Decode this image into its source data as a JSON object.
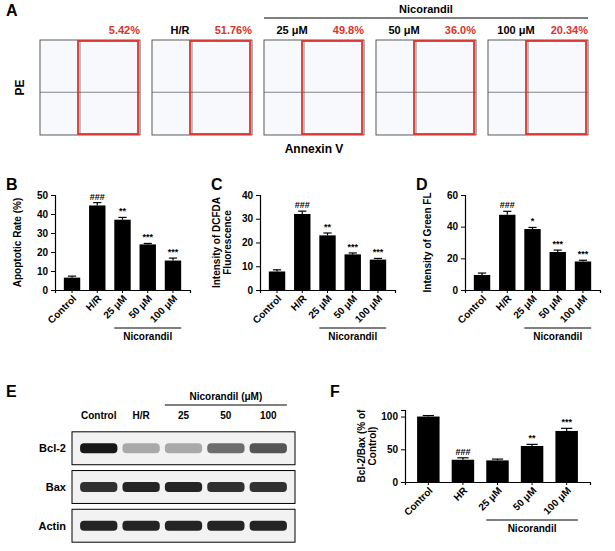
{
  "chart_data": [
    {
      "type": "flow_cytometry",
      "label": "A",
      "x_label": "Annexin V",
      "y_label": "PE",
      "group_label": "Nicorandil",
      "titles": [
        null,
        "H/R",
        "25 μM",
        "50 μM",
        "100 μM"
      ],
      "gate_labels": [
        "5.42%",
        "51.76%",
        "49.8%",
        "36.0%",
        "20.34%"
      ],
      "color": "#e0302a"
    },
    {
      "type": "bar",
      "label": "B",
      "y_label": "Apoptotic Rate (%)",
      "group_label": "Nicorandil",
      "categories": [
        "Control",
        "H/R",
        "25 μM",
        "50 μM",
        "100 μM"
      ],
      "values": [
        6.5,
        44.5,
        37,
        24,
        15.5
      ],
      "errors": [
        0.8,
        1.5,
        1.2,
        0.5,
        1.3
      ],
      "annotations": [
        null,
        "###",
        "**",
        "***",
        "***"
      ],
      "color": "#000000",
      "ylim": [
        0,
        50
      ],
      "yticks": [
        0,
        10,
        20,
        30,
        40,
        50
      ]
    },
    {
      "type": "bar",
      "label": "C",
      "y_label": "Intensity of DCFDA Fluorescence",
      "group_label": "Nicorandil",
      "categories": [
        "Control",
        "H/R",
        "25 μM",
        "50 μM",
        "100 μM"
      ],
      "values": [
        7.8,
        32,
        23,
        15,
        12.8
      ],
      "errors": [
        0.7,
        1.2,
        1.0,
        0.6,
        0.5
      ],
      "annotations": [
        null,
        "###",
        "**",
        "***",
        "***"
      ],
      "color": "#000000",
      "ylim": [
        0,
        40
      ],
      "yticks": [
        0,
        10,
        20,
        30,
        40
      ]
    },
    {
      "type": "bar",
      "label": "D",
      "y_label": "Intensity of Green FL",
      "group_label": "Nicorandil",
      "categories": [
        "Control",
        "H/R",
        "25 μM",
        "50 μM",
        "100 μM"
      ],
      "values": [
        9.5,
        47.5,
        38.5,
        24,
        18
      ],
      "errors": [
        1.2,
        2.2,
        1.0,
        1.2,
        0.8
      ],
      "annotations": [
        null,
        "###",
        "*",
        "***",
        "***"
      ],
      "color": "#000000",
      "ylim": [
        0,
        60
      ],
      "yticks": [
        0,
        20,
        40,
        60
      ]
    },
    {
      "type": "western_blot",
      "label": "E",
      "group_label": "Nicorandil (μM)",
      "lanes": [
        "Control",
        "H/R",
        "25",
        "50",
        "100"
      ],
      "rows": [
        {
          "name": "Bcl-2",
          "intensity": [
            0.9,
            0.3,
            0.3,
            0.55,
            0.65
          ]
        },
        {
          "name": "Bax",
          "intensity": [
            0.8,
            0.85,
            0.85,
            0.8,
            0.8
          ]
        },
        {
          "name": "Actin",
          "intensity": [
            0.85,
            0.85,
            0.85,
            0.85,
            0.85
          ]
        }
      ]
    },
    {
      "type": "bar",
      "label": "F",
      "y_label": "Bcl-2/Bax (% of Control)",
      "group_label": "Nicorandil",
      "categories": [
        "Control",
        "HR",
        "25 μM",
        "50 μM",
        "100 μM"
      ],
      "values": [
        100,
        34,
        33,
        55,
        78
      ],
      "errors": [
        1.5,
        3,
        2,
        2.5,
        4
      ],
      "annotations": [
        null,
        "###",
        null,
        "**",
        "***"
      ],
      "color": "#000000",
      "ylim": [
        0,
        110
      ],
      "yticks": [
        0,
        50,
        100
      ]
    }
  ]
}
